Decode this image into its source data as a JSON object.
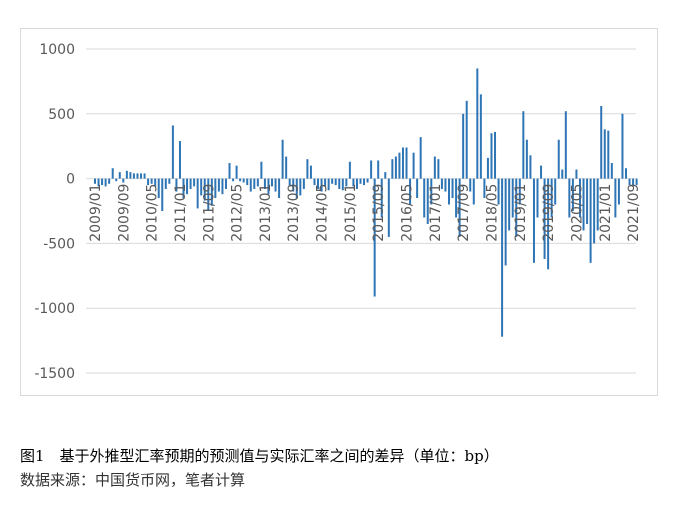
{
  "chart_data": {
    "type": "bar",
    "caption": "图1　基于外推型汇率预期的预测值与实际汇率之间的差异（单位：bp）",
    "source": "数据来源：中国货币网，笔者计算",
    "color": "#2e75b6",
    "grid": true,
    "ylim": [
      -1500,
      1000
    ],
    "yticks": [
      -1500,
      -1000,
      -500,
      0,
      500,
      1000
    ],
    "categories": [
      "2009/01",
      null,
      null,
      null,
      null,
      null,
      null,
      null,
      "2009/09",
      null,
      null,
      null,
      null,
      null,
      null,
      null,
      "2010/05",
      null,
      null,
      null,
      null,
      null,
      null,
      null,
      "2011/01",
      null,
      null,
      null,
      null,
      null,
      null,
      null,
      "2011/09",
      null,
      null,
      null,
      null,
      null,
      null,
      null,
      "2012/05",
      null,
      null,
      null,
      null,
      null,
      null,
      null,
      "2013/01",
      null,
      null,
      null,
      null,
      null,
      null,
      null,
      "2013/09",
      null,
      null,
      null,
      null,
      null,
      null,
      null,
      "2014/05",
      null,
      null,
      null,
      null,
      null,
      null,
      null,
      "2015/01",
      null,
      null,
      null,
      null,
      null,
      null,
      null,
      "2015/09",
      null,
      null,
      null,
      null,
      null,
      null,
      null,
      "2016/05",
      null,
      null,
      null,
      null,
      null,
      null,
      null,
      "2017/01",
      null,
      null,
      null,
      null,
      null,
      null,
      null,
      "2017/09",
      null,
      null,
      null,
      null,
      null,
      null,
      null,
      "2018/05",
      null,
      null,
      null,
      null,
      null,
      null,
      null,
      "2019/01",
      null,
      null,
      null,
      null,
      null,
      null,
      null,
      "2019/09",
      null,
      null,
      null,
      null,
      null,
      null,
      null,
      "2020/05",
      null,
      null,
      null,
      null,
      null,
      null,
      null,
      "2021/01",
      null,
      null,
      null,
      null,
      null,
      null,
      null,
      "2021/09",
      null
    ],
    "values": [
      -40,
      -60,
      -50,
      -60,
      -40,
      80,
      -20,
      50,
      -30,
      60,
      50,
      40,
      40,
      40,
      40,
      -50,
      -40,
      -60,
      -150,
      -250,
      -80,
      -40,
      410,
      -100,
      290,
      -150,
      -120,
      -80,
      -60,
      -230,
      -130,
      -170,
      -250,
      -210,
      -150,
      -100,
      -120,
      -80,
      120,
      -20,
      100,
      -20,
      -30,
      -50,
      -100,
      -80,
      -60,
      130,
      -80,
      -120,
      -60,
      -100,
      -150,
      300,
      170,
      -60,
      -100,
      -150,
      -130,
      -80,
      150,
      100,
      -50,
      -80,
      -100,
      -60,
      -90,
      -40,
      -50,
      -80,
      -90,
      -60,
      130,
      -60,
      -80,
      -40,
      -50,
      -30,
      140,
      -910,
      140,
      -300,
      50,
      -450,
      150,
      170,
      200,
      240,
      240,
      -200,
      200,
      -150,
      320,
      -300,
      -350,
      -200,
      170,
      150,
      -80,
      -100,
      -200,
      -150,
      -300,
      -450,
      500,
      600,
      -100,
      -200,
      850,
      650,
      -150,
      160,
      350,
      360,
      -200,
      -1220,
      -670,
      -400,
      -300,
      -450,
      -200,
      520,
      300,
      180,
      -650,
      -300,
      100,
      -620,
      -700,
      -300,
      -200,
      300,
      70,
      520,
      -300,
      -250,
      70,
      -300,
      -400,
      -350,
      -650,
      -500,
      -400,
      560,
      380,
      370,
      120,
      -300,
      -200,
      500,
      80,
      -50,
      -60,
      -50
    ]
  }
}
